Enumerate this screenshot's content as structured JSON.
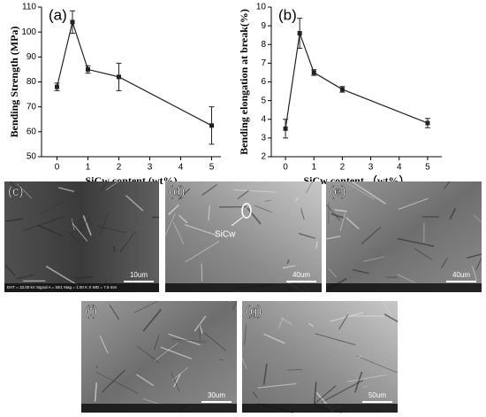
{
  "chart_data": [
    {
      "type": "line",
      "panel_label": "(a)",
      "xlabel": "SiCw content (wt%)",
      "ylabel": "Bending Strength (MPa)",
      "x": [
        0,
        0.5,
        1,
        2,
        5
      ],
      "values": [
        78,
        104,
        85,
        82,
        62.5
      ],
      "errors": [
        1.5,
        4.5,
        1.5,
        5.5,
        7.5
      ],
      "color": "#222222",
      "xlim": [
        -0.5,
        5.3
      ],
      "xticks": [
        0,
        1,
        2,
        3,
        4,
        5
      ],
      "ylim": [
        50,
        110
      ],
      "yticks": [
        50,
        60,
        70,
        80,
        90,
        100,
        110
      ]
    },
    {
      "type": "line",
      "panel_label": "(b)",
      "xlabel": "SiCw content （wt%）",
      "ylabel": "Bending elongation at break(%)",
      "x": [
        0,
        0.5,
        1,
        2,
        5
      ],
      "values": [
        3.5,
        8.6,
        6.5,
        5.6,
        3.8
      ],
      "errors": [
        0.5,
        0.8,
        0.15,
        0.15,
        0.25
      ],
      "color": "#222222",
      "xlim": [
        -0.5,
        5.5
      ],
      "xticks": [
        0,
        1,
        2,
        3,
        4,
        5
      ],
      "ylim": [
        2,
        10
      ],
      "yticks": [
        2,
        3,
        4,
        5,
        6,
        7,
        8,
        9,
        10
      ]
    }
  ],
  "panels": [
    {
      "label": "(c)",
      "scale_bar": "10um",
      "info": "EHT = 10.00 kV   Signal A = SE1   Mag = 1.00 K X   WD = 7.5 mm"
    },
    {
      "label": "(d)",
      "scale_bar": "40um",
      "annotation": "SiCw"
    },
    {
      "label": "(e)",
      "scale_bar": "40um"
    },
    {
      "label": "(f)",
      "scale_bar": "30um"
    },
    {
      "label": "(g)",
      "scale_bar": "50um"
    }
  ]
}
